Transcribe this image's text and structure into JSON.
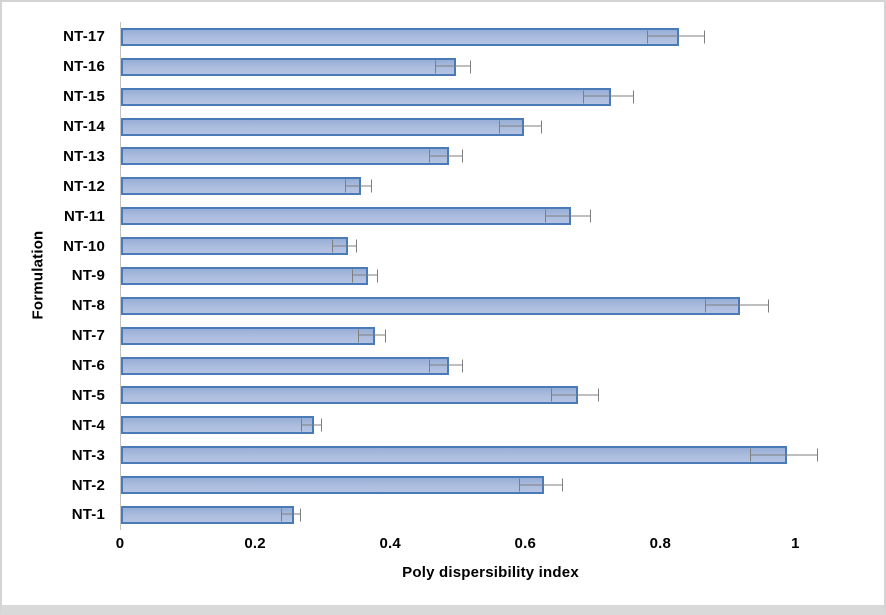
{
  "chart_data": {
    "type": "bar",
    "orientation": "horizontal",
    "title": "",
    "xlabel": "Poly dispersibility index",
    "ylabel": "Formulation",
    "categories": [
      "NT-1",
      "NT-2",
      "NT-3",
      "NT-4",
      "NT-5",
      "NT-6",
      "NT-7",
      "NT-8",
      "NT-9",
      "NT-10",
      "NT-11",
      "NT-12",
      "NT-13",
      "NT-14",
      "NT-15",
      "NT-16",
      "NT-17"
    ],
    "values": [
      0.25,
      0.62,
      0.98,
      0.28,
      0.67,
      0.48,
      0.37,
      0.91,
      0.36,
      0.33,
      0.66,
      0.35,
      0.48,
      0.59,
      0.72,
      0.49,
      0.82
    ],
    "errors": [
      0.013,
      0.031,
      0.049,
      0.014,
      0.034,
      0.024,
      0.019,
      0.046,
      0.018,
      0.017,
      0.033,
      0.018,
      0.024,
      0.03,
      0.036,
      0.025,
      0.041
    ],
    "x_ticks": [
      {
        "value": 0,
        "label": "0"
      },
      {
        "value": 0.2,
        "label": "0.2"
      },
      {
        "value": 0.4,
        "label": "0.4"
      },
      {
        "value": 0.6,
        "label": "0.6"
      },
      {
        "value": 0.8,
        "label": "0.8"
      },
      {
        "value": 1,
        "label": "1"
      }
    ],
    "xlim": [
      0,
      1.1
    ],
    "grid": false,
    "legend": false,
    "screen_order_note": "NT-17 rendered at top, NT-1 at bottom",
    "colors": {
      "bar_fill_top": "#97aed6",
      "bar_fill_bottom": "#b6c4e3",
      "bar_border": "#4a7ab8",
      "error_bar": "#7f7f7f",
      "axis_line": "#c3c3c3",
      "text": "#000000",
      "frame": "#d4d4d4"
    }
  }
}
